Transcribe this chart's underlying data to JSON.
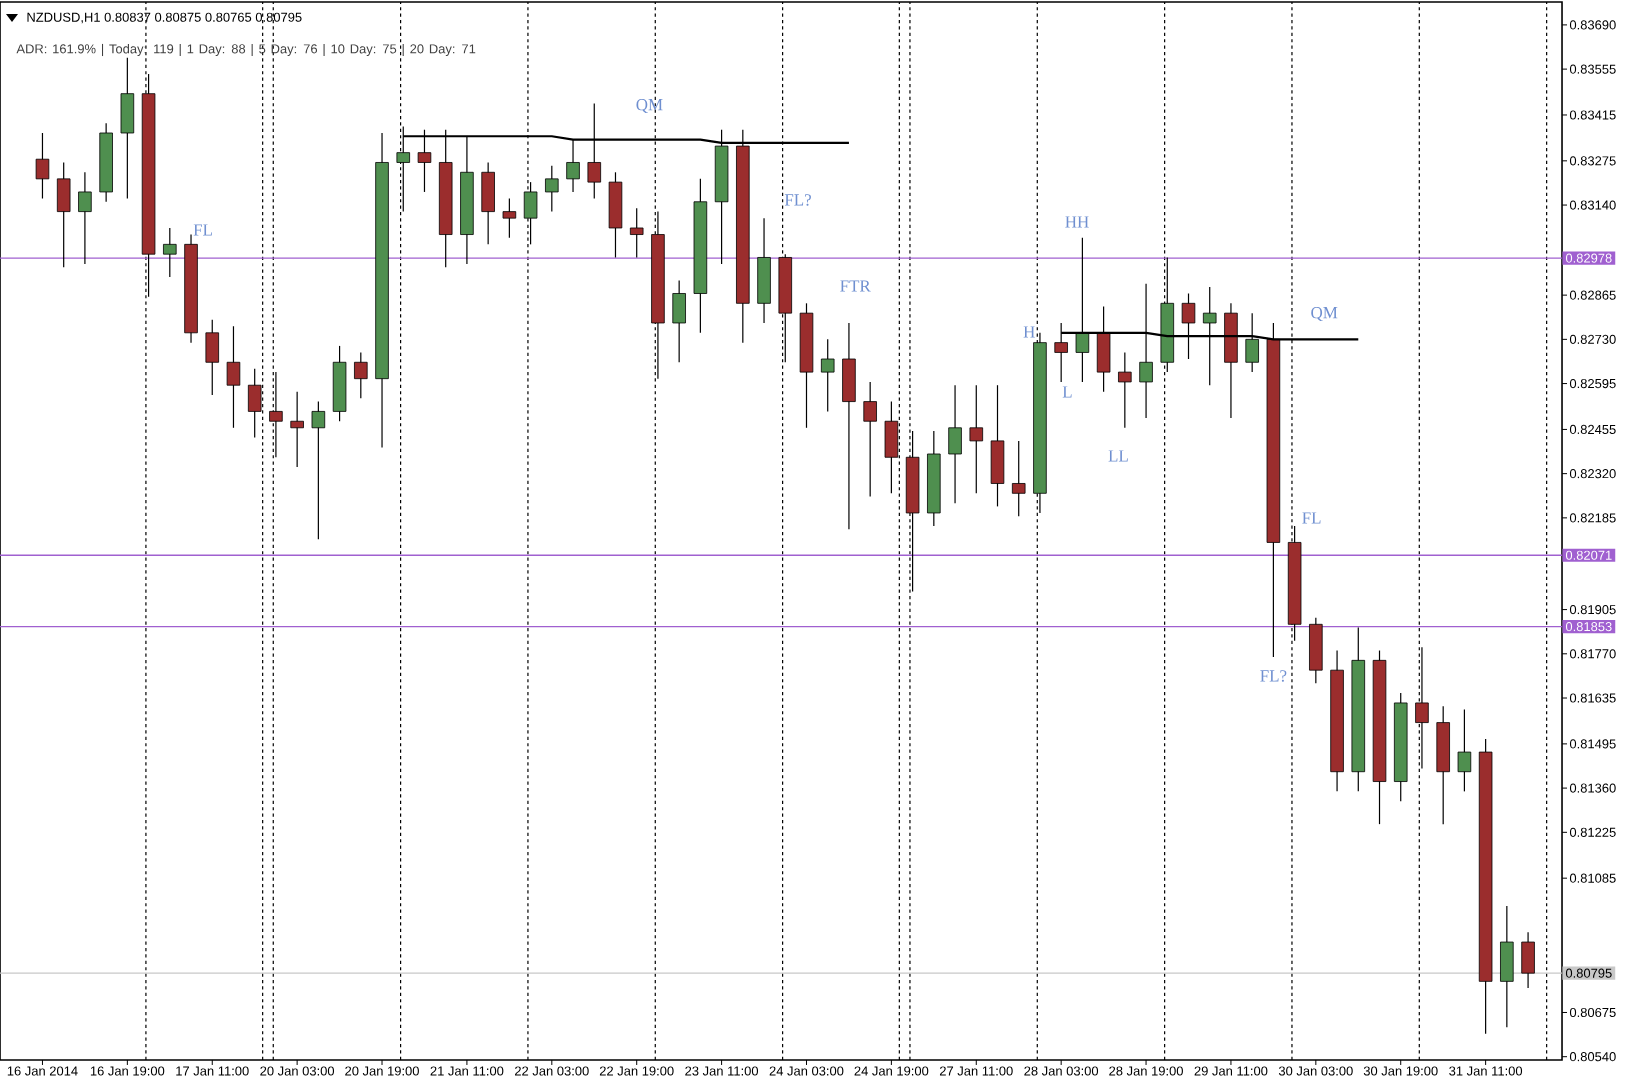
{
  "chart_data": {
    "type": "candlestick",
    "title": "NZDUSD,H1 0.80837 0.80875 0.80765 0.80795",
    "categories": [
      "16 Jan 2014",
      null,
      null,
      null,
      "16 Jan 19:00",
      null,
      null,
      null,
      "17 Jan 11:00",
      null,
      null,
      null,
      "20 Jan 03:00",
      null,
      null,
      null,
      "20 Jan 19:00",
      null,
      null,
      null,
      "21 Jan 11:00",
      null,
      null,
      null,
      "22 Jan 03:00",
      null,
      null,
      null,
      "22 Jan 19:00",
      null,
      null,
      null,
      "23 Jan 11:00",
      null,
      null,
      null,
      "24 Jan 03:00",
      null,
      null,
      null,
      "24 Jan 19:00",
      null,
      null,
      null,
      "27 Jan 11:00",
      null,
      null,
      null,
      "28 Jan 03:00",
      null,
      null,
      null,
      "28 Jan 19:00",
      null,
      null,
      null,
      "29 Jan 11:00",
      null,
      null,
      null,
      "30 Jan 03:00",
      null,
      null,
      null,
      "30 Jan 19:00",
      null,
      null,
      null,
      "31 Jan 11:00",
      null,
      null
    ],
    "ohlc": [
      [
        0.8328,
        0.8336,
        0.8316,
        0.8322
      ],
      [
        0.8322,
        0.8327,
        0.8295,
        0.8312
      ],
      [
        0.8312,
        0.8324,
        0.8296,
        0.8318
      ],
      [
        0.8318,
        0.8339,
        0.8315,
        0.8336
      ],
      [
        0.8336,
        0.8359,
        0.8316,
        0.8348
      ],
      [
        0.8348,
        0.8354,
        0.8286,
        0.8299
      ],
      [
        0.8299,
        0.8307,
        0.8292,
        0.8302
      ],
      [
        0.8302,
        0.8305,
        0.8272,
        0.8275
      ],
      [
        0.8275,
        0.8279,
        0.8256,
        0.8266
      ],
      [
        0.8266,
        0.8277,
        0.8246,
        0.8259
      ],
      [
        0.8259,
        0.8264,
        0.8243,
        0.8251
      ],
      [
        0.8251,
        0.8263,
        0.8237,
        0.8248
      ],
      [
        0.8248,
        0.8257,
        0.8234,
        0.8246
      ],
      [
        0.8246,
        0.8254,
        0.8212,
        0.8251
      ],
      [
        0.8251,
        0.8271,
        0.8248,
        0.8266
      ],
      [
        0.8266,
        0.8269,
        0.8255,
        0.8261
      ],
      [
        0.8261,
        0.8336,
        0.824,
        0.8327
      ],
      [
        0.8327,
        0.8338,
        0.8312,
        0.833
      ],
      [
        0.833,
        0.8337,
        0.8318,
        0.8327
      ],
      [
        0.8327,
        0.8337,
        0.8295,
        0.8305
      ],
      [
        0.8305,
        0.8335,
        0.8296,
        0.8324
      ],
      [
        0.8324,
        0.8327,
        0.8302,
        0.8312
      ],
      [
        0.8312,
        0.8316,
        0.8304,
        0.831
      ],
      [
        0.831,
        0.8321,
        0.8302,
        0.8318
      ],
      [
        0.8318,
        0.8326,
        0.8312,
        0.8322
      ],
      [
        0.8322,
        0.8334,
        0.8318,
        0.8327
      ],
      [
        0.8327,
        0.8345,
        0.8316,
        0.8321
      ],
      [
        0.8321,
        0.8324,
        0.8298,
        0.8307
      ],
      [
        0.8307,
        0.8313,
        0.8298,
        0.8305
      ],
      [
        0.8305,
        0.8312,
        0.8261,
        0.8278
      ],
      [
        0.8278,
        0.8291,
        0.8266,
        0.8287
      ],
      [
        0.8287,
        0.8322,
        0.8275,
        0.8315
      ],
      [
        0.8315,
        0.8337,
        0.8296,
        0.8332
      ],
      [
        0.8332,
        0.8337,
        0.8272,
        0.8284
      ],
      [
        0.8284,
        0.831,
        0.8278,
        0.8298
      ],
      [
        0.8298,
        0.8299,
        0.8266,
        0.8281
      ],
      [
        0.8281,
        0.8284,
        0.8246,
        0.8263
      ],
      [
        0.8263,
        0.8273,
        0.8251,
        0.8267
      ],
      [
        0.8267,
        0.8278,
        0.8215,
        0.8254
      ],
      [
        0.8254,
        0.826,
        0.8225,
        0.8248
      ],
      [
        0.8248,
        0.8254,
        0.8226,
        0.8237
      ],
      [
        0.8237,
        0.8245,
        0.8196,
        0.822
      ],
      [
        0.822,
        0.8245,
        0.8216,
        0.8238
      ],
      [
        0.8238,
        0.8259,
        0.8223,
        0.8246
      ],
      [
        0.8246,
        0.8259,
        0.8226,
        0.8242
      ],
      [
        0.8242,
        0.8259,
        0.8222,
        0.8229
      ],
      [
        0.8229,
        0.8242,
        0.8219,
        0.8226
      ],
      [
        0.8226,
        0.8275,
        0.822,
        0.8272
      ],
      [
        0.8272,
        0.8278,
        0.826,
        0.8269
      ],
      [
        0.8269,
        0.8304,
        0.826,
        0.8275
      ],
      [
        0.8275,
        0.8283,
        0.8257,
        0.8263
      ],
      [
        0.8263,
        0.8269,
        0.8246,
        0.826
      ],
      [
        0.826,
        0.829,
        0.8249,
        0.8266
      ],
      [
        0.8266,
        0.8298,
        0.8263,
        0.8284
      ],
      [
        0.8284,
        0.8287,
        0.8267,
        0.8278
      ],
      [
        0.8278,
        0.8289,
        0.8259,
        0.8281
      ],
      [
        0.8281,
        0.8284,
        0.8249,
        0.8266
      ],
      [
        0.8266,
        0.8281,
        0.8263,
        0.8273
      ],
      [
        0.8273,
        0.8278,
        0.8176,
        0.8211
      ],
      [
        0.8211,
        0.8216,
        0.8181,
        0.8186
      ],
      [
        0.8186,
        0.8188,
        0.8168,
        0.8172
      ],
      [
        0.8172,
        0.8178,
        0.8135,
        0.8141
      ],
      [
        0.8141,
        0.8185,
        0.8135,
        0.8175
      ],
      [
        0.8175,
        0.8178,
        0.8125,
        0.8138
      ],
      [
        0.8138,
        0.8165,
        0.8132,
        0.8162
      ],
      [
        0.8162,
        0.8179,
        0.8142,
        0.8156
      ],
      [
        0.8156,
        0.8161,
        0.8125,
        0.8141
      ],
      [
        0.8141,
        0.816,
        0.8135,
        0.8147
      ],
      [
        0.8147,
        0.8151,
        0.8061,
        0.8077
      ],
      [
        0.8077,
        0.81,
        0.8063,
        0.8089
      ],
      [
        0.8089,
        0.8092,
        0.8075,
        0.80795
      ]
    ],
    "colors": [
      "#9b2d2d",
      "#9b2d2d",
      "#4f8f4f",
      "#4f8f4f",
      "#4f8f4f",
      "#9b2d2d",
      "#4f8f4f",
      "#9b2d2d",
      "#9b2d2d",
      "#9b2d2d",
      "#9b2d2d",
      "#9b2d2d",
      "#9b2d2d",
      "#4f8f4f",
      "#4f8f4f",
      "#9b2d2d",
      "#4f8f4f",
      "#4f8f4f",
      "#9b2d2d",
      "#9b2d2d",
      "#4f8f4f",
      "#9b2d2d",
      "#9b2d2d",
      "#4f8f4f",
      "#4f8f4f",
      "#4f8f4f",
      "#9b2d2d",
      "#9b2d2d",
      "#9b2d2d",
      "#9b2d2d",
      "#4f8f4f",
      "#4f8f4f",
      "#4f8f4f",
      "#9b2d2d",
      "#4f8f4f",
      "#9b2d2d",
      "#9b2d2d",
      "#4f8f4f",
      "#9b2d2d",
      "#9b2d2d",
      "#9b2d2d",
      "#9b2d2d",
      "#4f8f4f",
      "#4f8f4f",
      "#9b2d2d",
      "#9b2d2d",
      "#9b2d2d",
      "#4f8f4f",
      "#9b2d2d",
      "#4f8f4f",
      "#9b2d2d",
      "#9b2d2d",
      "#4f8f4f",
      "#4f8f4f",
      "#9b2d2d",
      "#4f8f4f",
      "#9b2d2d",
      "#4f8f4f",
      "#9b2d2d",
      "#9b2d2d",
      "#9b2d2d",
      "#9b2d2d",
      "#4f8f4f",
      "#9b2d2d",
      "#4f8f4f",
      "#9b2d2d",
      "#9b2d2d",
      "#4f8f4f",
      "#9b2d2d",
      "#4f8f4f",
      "#9b2d2d"
    ],
    "series": [
      {
        "type": "line",
        "color": "#000000",
        "values": [
          null,
          null,
          null,
          null,
          null,
          null,
          null,
          null,
          null,
          null,
          null,
          null,
          null,
          null,
          null,
          null,
          null,
          0.8335,
          0.8335,
          0.8335,
          0.8335,
          0.8335,
          0.8335,
          0.8335,
          0.8335,
          0.8334,
          0.8334,
          0.8334,
          0.8334,
          0.8334,
          0.8334,
          0.8334,
          0.8333,
          0.8333,
          0.8333,
          0.8333,
          0.8333,
          0.8333,
          0.8333,
          null,
          null,
          null,
          null,
          null,
          null,
          null,
          null,
          null,
          null,
          null,
          null,
          null,
          null,
          null,
          null,
          null,
          null,
          null,
          null,
          null,
          null,
          null,
          null,
          null,
          null,
          null,
          null,
          null,
          null,
          null,
          null
        ]
      },
      {
        "type": "line",
        "color": "#000000",
        "values": [
          null,
          null,
          null,
          null,
          null,
          null,
          null,
          null,
          null,
          null,
          null,
          null,
          null,
          null,
          null,
          null,
          null,
          null,
          null,
          null,
          null,
          null,
          null,
          null,
          null,
          null,
          null,
          null,
          null,
          null,
          null,
          null,
          null,
          null,
          null,
          null,
          null,
          null,
          null,
          null,
          null,
          null,
          null,
          null,
          null,
          null,
          null,
          null,
          0.8275,
          0.8275,
          0.8275,
          0.8275,
          0.8275,
          0.8274,
          0.8274,
          0.8274,
          0.8274,
          0.8274,
          0.8273,
          0.8273,
          0.8273,
          0.8273,
          0.8273,
          null,
          null,
          null,
          null,
          null,
          null,
          null,
          null
        ]
      }
    ],
    "ylim": [
      0.8053,
      0.8376
    ],
    "yticks": [
      {
        "value": 0.8369,
        "label": "0.83690"
      },
      {
        "value": 0.83555,
        "label": "0.83555"
      },
      {
        "value": 0.83415,
        "label": "0.83415"
      },
      {
        "value": 0.83275,
        "label": "0.83275"
      },
      {
        "value": 0.8314,
        "label": "0.83140"
      },
      {
        "value": 0.82865,
        "label": "0.82865"
      },
      {
        "value": 0.8273,
        "label": "0.82730"
      },
      {
        "value": 0.82595,
        "label": "0.82595"
      },
      {
        "value": 0.82455,
        "label": "0.82455"
      },
      {
        "value": 0.8232,
        "label": "0.82320"
      },
      {
        "value": 0.82185,
        "label": "0.82185"
      },
      {
        "value": 0.81905,
        "label": "0.81905"
      },
      {
        "value": 0.8177,
        "label": "0.81770"
      },
      {
        "value": 0.81635,
        "label": "0.81635"
      },
      {
        "value": 0.81495,
        "label": "0.81495"
      },
      {
        "value": 0.8136,
        "label": "0.81360"
      },
      {
        "value": 0.81225,
        "label": "0.81225"
      },
      {
        "value": 0.81085,
        "label": "0.81085"
      },
      {
        "value": 0.80675,
        "label": "0.80675"
      },
      {
        "value": 0.8054,
        "label": "0.80540"
      }
    ],
    "grid": "x",
    "ref_lines": [
      {
        "axis": "y",
        "value": 0.82978,
        "label": "0.82978",
        "color": "#a060d0"
      },
      {
        "axis": "y",
        "value": 0.82071,
        "label": "0.82071",
        "color": "#a060d0"
      },
      {
        "axis": "y",
        "value": 0.81853,
        "label": "0.81853",
        "color": "#a060d0"
      },
      {
        "axis": "y",
        "value": 0.80795,
        "label": "0.80795",
        "color": "#c8c8c8"
      }
    ],
    "annotations": [
      "ADR: 161.9%  |  Today: 119  |  1 Day: 88  |  5 Day: 76  |  10 Day: 75  |  20 Day: 71",
      "FL",
      "QM",
      "FL?",
      "FTR",
      "HH",
      "H",
      "L",
      "LL",
      "QM",
      "FL",
      "FL?"
    ]
  }
}
